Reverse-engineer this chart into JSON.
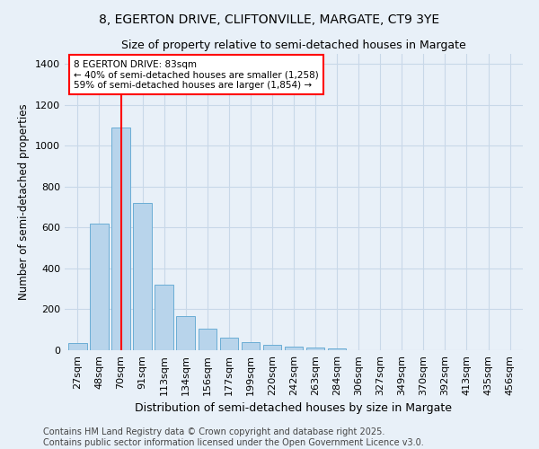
{
  "title": "8, EGERTON DRIVE, CLIFTONVILLE, MARGATE, CT9 3YE",
  "subtitle": "Size of property relative to semi-detached houses in Margate",
  "xlabel": "Distribution of semi-detached houses by size in Margate",
  "ylabel": "Number of semi-detached properties",
  "categories": [
    "27sqm",
    "48sqm",
    "70sqm",
    "91sqm",
    "113sqm",
    "134sqm",
    "156sqm",
    "177sqm",
    "199sqm",
    "220sqm",
    "242sqm",
    "263sqm",
    "284sqm",
    "306sqm",
    "327sqm",
    "349sqm",
    "370sqm",
    "392sqm",
    "413sqm",
    "435sqm",
    "456sqm"
  ],
  "values": [
    35,
    620,
    1090,
    720,
    320,
    165,
    105,
    60,
    40,
    25,
    18,
    12,
    10,
    0,
    0,
    0,
    0,
    0,
    0,
    0,
    0
  ],
  "bar_color": "#b8d4eb",
  "bar_edge_color": "#6aadd5",
  "vline_x": 2.0,
  "vline_color": "red",
  "annotation_text": "8 EGERTON DRIVE: 83sqm\n← 40% of semi-detached houses are smaller (1,258)\n59% of semi-detached houses are larger (1,854) →",
  "annotation_box_color": "white",
  "annotation_box_edge": "red",
  "ylim": [
    0,
    1450
  ],
  "yticks": [
    0,
    200,
    400,
    600,
    800,
    1000,
    1200,
    1400
  ],
  "background_color": "#e8f0f8",
  "grid_color": "#c8d8e8",
  "footer_text": "Contains HM Land Registry data © Crown copyright and database right 2025.\nContains public sector information licensed under the Open Government Licence v3.0.",
  "title_fontsize": 10,
  "subtitle_fontsize": 9,
  "xlabel_fontsize": 9,
  "ylabel_fontsize": 8.5,
  "tick_fontsize": 8,
  "footer_fontsize": 7
}
